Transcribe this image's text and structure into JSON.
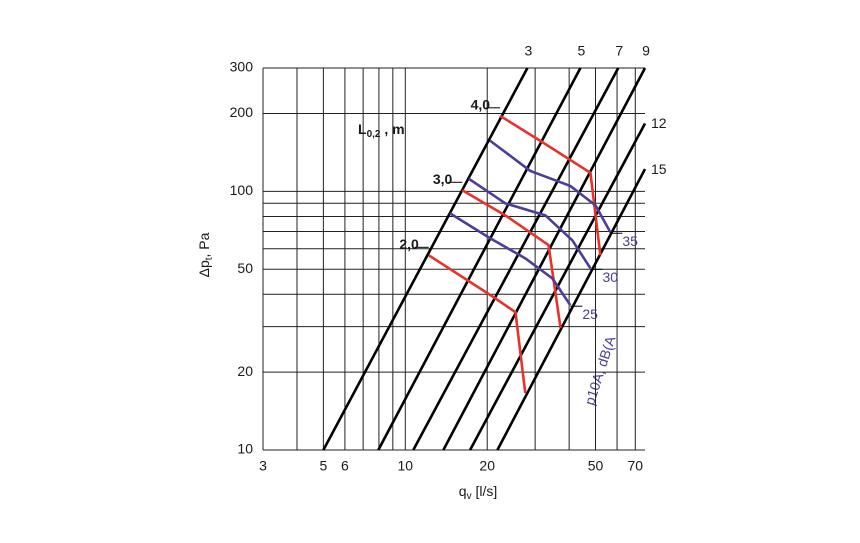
{
  "chart_data": {
    "type": "line",
    "xscale": "log",
    "yscale": "log",
    "xlim": [
      3,
      76
    ],
    "ylim": [
      10,
      300
    ],
    "xticks": [
      3,
      5,
      6,
      10,
      20,
      50,
      70
    ],
    "yticks": [
      10,
      20,
      50,
      100,
      200,
      300
    ],
    "xgrid": [
      3,
      4,
      5,
      6,
      7,
      8,
      9,
      10,
      20,
      30,
      40,
      50,
      60,
      70
    ],
    "ygrid": [
      10,
      20,
      30,
      40,
      50,
      60,
      70,
      80,
      90,
      100,
      200,
      300
    ],
    "grid": true,
    "xlabel": {
      "main": "q",
      "sub": "v",
      "rest": " [l/s]"
    },
    "ylabel": {
      "main": "Δp",
      "sub": "t",
      "rest": ", Pa"
    },
    "annotation": {
      "main": "L",
      "sub": "0,2",
      "rest": " , m"
    },
    "noise_label": "p10A, dB(A",
    "series": [
      {
        "name": "3",
        "color": "#000000",
        "label_side": "top",
        "x": [
          5.0,
          28.1
        ],
        "values": [
          10,
          300
        ]
      },
      {
        "name": "5",
        "color": "#000000",
        "label_side": "top",
        "x": [
          7.96,
          44
        ],
        "values": [
          10,
          300
        ]
      },
      {
        "name": "7",
        "color": "#000000",
        "label_side": "top",
        "x": [
          10.7,
          60.6
        ],
        "values": [
          10,
          300
        ]
      },
      {
        "name": "9",
        "color": "#000000",
        "label_side": "top",
        "x": [
          13.8,
          76
        ],
        "values": [
          10,
          300
        ]
      },
      {
        "name": "12",
        "color": "#000000",
        "label_side": "right",
        "x": [
          17.3,
          76
        ],
        "values": [
          10,
          183
        ]
      },
      {
        "name": "15",
        "color": "#000000",
        "label_side": "right",
        "x": [
          21.8,
          76
        ],
        "values": [
          10,
          122
        ]
      },
      {
        "name": "4,0",
        "color": "#e8322c",
        "label_side": "left",
        "x": [
          22.3,
          31.3,
          47.9,
          52.1
        ],
        "values": [
          196,
          157,
          118,
          56.6
        ]
      },
      {
        "name": "3,0",
        "color": "#e8322c",
        "label_side": "left",
        "x": [
          16.2,
          23.3,
          33.6,
          37.2
        ],
        "values": [
          101,
          80.8,
          62,
          29.6
        ]
      },
      {
        "name": "2,0",
        "color": "#e8322c",
        "label_side": "left",
        "x": [
          12.2,
          21.1,
          25.4,
          27.6
        ],
        "values": [
          56.6,
          39.0,
          34.1,
          16.6
        ]
      },
      {
        "name": "35",
        "color": "#4b3d98",
        "label_side": "below-right",
        "x": [
          20.5,
          28.8,
          40.4,
          50.0,
          56.7
        ],
        "values": [
          157,
          120,
          105,
          88.3,
          69.5
        ]
      },
      {
        "name": "30",
        "color": "#4b3d98",
        "label_side": "below-right",
        "x": [
          17.1,
          23.3,
          32.7,
          41.1,
          47.9
        ],
        "values": [
          112,
          89.9,
          80.8,
          64.7,
          50.4
        ]
      },
      {
        "name": "25",
        "color": "#4b3d98",
        "label_side": "below-right",
        "x": [
          14.6,
          20.5,
          27.6,
          34.7,
          40.4
        ],
        "values": [
          82.2,
          65.9,
          55.1,
          46.1,
          36.3
        ]
      }
    ]
  }
}
